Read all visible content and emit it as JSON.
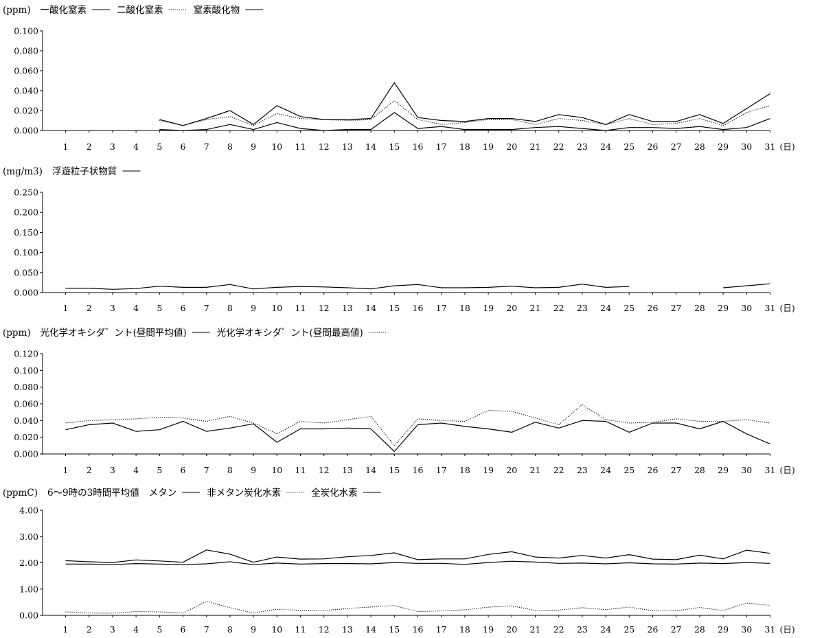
{
  "chart_data": [
    {
      "type": "line",
      "unit": "(ppm)",
      "x_unit": "(日)",
      "x": [
        1,
        2,
        3,
        4,
        5,
        6,
        7,
        8,
        9,
        10,
        11,
        12,
        13,
        14,
        15,
        16,
        17,
        18,
        19,
        20,
        21,
        22,
        23,
        24,
        25,
        26,
        27,
        28,
        29,
        30,
        31
      ],
      "ylim": [
        0,
        0.1
      ],
      "yticks": [
        "0.000",
        "0.020",
        "0.040",
        "0.060",
        "0.080",
        "0.100"
      ],
      "grid": false,
      "legend_position": "top",
      "series": [
        {
          "name": "一酸化窒素",
          "style": "solid",
          "values": [
            null,
            null,
            null,
            null,
            0.001,
            0.0,
            0.001,
            0.006,
            0.001,
            0.008,
            0.002,
            0.0,
            0.001,
            0.001,
            0.018,
            0.002,
            0.004,
            0.001,
            0.001,
            0.001,
            0.003,
            0.004,
            0.002,
            0.0,
            0.003,
            0.003,
            0.002,
            0.004,
            0.001,
            0.003,
            0.012
          ]
        },
        {
          "name": "二酸化窒素",
          "style": "dotted",
          "values": [
            null,
            null,
            null,
            null,
            0.01,
            0.005,
            0.011,
            0.014,
            0.005,
            0.017,
            0.012,
            0.011,
            0.01,
            0.011,
            0.03,
            0.011,
            0.006,
            0.008,
            0.011,
            0.011,
            0.006,
            0.012,
            0.01,
            0.006,
            0.012,
            0.006,
            0.007,
            0.012,
            0.005,
            0.018,
            0.025
          ]
        },
        {
          "name": "窒素酸化物",
          "style": "solid",
          "values": [
            null,
            null,
            null,
            null,
            0.011,
            0.005,
            0.012,
            0.02,
            0.006,
            0.025,
            0.014,
            0.011,
            0.011,
            0.012,
            0.048,
            0.013,
            0.01,
            0.009,
            0.012,
            0.012,
            0.009,
            0.016,
            0.013,
            0.006,
            0.016,
            0.009,
            0.009,
            0.016,
            0.007,
            0.022,
            0.037
          ]
        }
      ]
    },
    {
      "type": "line",
      "unit": "(mg/m3)",
      "x_unit": "(日)",
      "x": [
        1,
        2,
        3,
        4,
        5,
        6,
        7,
        8,
        9,
        10,
        11,
        12,
        13,
        14,
        15,
        16,
        17,
        18,
        19,
        20,
        21,
        22,
        23,
        24,
        25,
        26,
        27,
        28,
        29,
        30,
        31
      ],
      "ylim": [
        0,
        0.25
      ],
      "yticks": [
        "0.000",
        "0.050",
        "0.100",
        "0.150",
        "0.200",
        "0.250"
      ],
      "grid": false,
      "legend_position": "top",
      "series": [
        {
          "name": "浮遊粒子状物質",
          "style": "solid",
          "values": [
            0.011,
            0.011,
            0.008,
            0.01,
            0.016,
            0.013,
            0.013,
            0.02,
            0.009,
            0.013,
            0.015,
            0.014,
            0.012,
            0.009,
            0.017,
            0.02,
            0.012,
            0.012,
            0.013,
            0.016,
            0.012,
            0.013,
            0.021,
            0.013,
            0.015,
            null,
            null,
            null,
            0.012,
            0.017,
            0.022
          ]
        }
      ]
    },
    {
      "type": "line",
      "unit": "(ppm)",
      "x_unit": "(日)",
      "x": [
        1,
        2,
        3,
        4,
        5,
        6,
        7,
        8,
        9,
        10,
        11,
        12,
        13,
        14,
        15,
        16,
        17,
        18,
        19,
        20,
        21,
        22,
        23,
        24,
        25,
        26,
        27,
        28,
        29,
        30,
        31
      ],
      "ylim": [
        0,
        0.12
      ],
      "yticks": [
        "0.000",
        "0.020",
        "0.040",
        "0.060",
        "0.080",
        "0.100",
        "0.120"
      ],
      "grid": false,
      "legend_position": "top",
      "series": [
        {
          "name": "光化学オキシダ゛ント(昼間平均値)",
          "style": "solid",
          "values": [
            0.029,
            0.035,
            0.037,
            0.027,
            0.029,
            0.039,
            0.027,
            0.031,
            0.036,
            0.014,
            0.03,
            0.03,
            0.031,
            0.03,
            0.003,
            0.035,
            0.037,
            0.033,
            0.03,
            0.026,
            0.038,
            0.031,
            0.04,
            0.039,
            0.026,
            0.037,
            0.037,
            0.03,
            0.039,
            0.024,
            0.012
          ]
        },
        {
          "name": "光化学オキシダ゛ント(昼間最高値)",
          "style": "dotted",
          "values": [
            0.037,
            0.04,
            0.041,
            0.042,
            0.044,
            0.043,
            0.039,
            0.045,
            0.037,
            0.024,
            0.039,
            0.037,
            0.041,
            0.045,
            0.01,
            0.042,
            0.04,
            0.039,
            0.052,
            0.051,
            0.043,
            0.035,
            0.059,
            0.041,
            0.037,
            0.038,
            0.042,
            0.039,
            0.039,
            0.041,
            0.037
          ]
        }
      ]
    },
    {
      "type": "line",
      "unit": "(ppmC)",
      "title": "6～9時の3時間平均値",
      "x_unit": "(日)",
      "x": [
        1,
        2,
        3,
        4,
        5,
        6,
        7,
        8,
        9,
        10,
        11,
        12,
        13,
        14,
        15,
        16,
        17,
        18,
        19,
        20,
        21,
        22,
        23,
        24,
        25,
        26,
        27,
        28,
        29,
        30,
        31
      ],
      "ylim": [
        0,
        4
      ],
      "yticks": [
        "0.00",
        "1.00",
        "2.00",
        "3.00",
        "4.00"
      ],
      "grid": false,
      "legend_position": "top",
      "series": [
        {
          "name": "メタン",
          "style": "solid",
          "values": [
            1.95,
            1.95,
            1.93,
            1.97,
            1.95,
            1.93,
            1.96,
            2.04,
            1.93,
            1.99,
            1.95,
            1.97,
            1.97,
            1.96,
            2.01,
            1.98,
            1.98,
            1.94,
            2.01,
            2.06,
            2.03,
            1.98,
            1.99,
            1.96,
            2.0,
            1.96,
            1.95,
            1.99,
            1.97,
            2.01,
            1.98
          ]
        },
        {
          "name": "非メタン炭化水素",
          "style": "dotted",
          "values": [
            0.13,
            0.09,
            0.08,
            0.14,
            0.13,
            0.09,
            0.53,
            0.29,
            0.09,
            0.23,
            0.19,
            0.18,
            0.26,
            0.32,
            0.37,
            0.14,
            0.17,
            0.21,
            0.31,
            0.36,
            0.19,
            0.2,
            0.29,
            0.22,
            0.31,
            0.18,
            0.17,
            0.3,
            0.18,
            0.47,
            0.38
          ]
        },
        {
          "name": "全炭化水素",
          "style": "solid",
          "values": [
            2.08,
            2.04,
            2.01,
            2.11,
            2.07,
            2.02,
            2.49,
            2.33,
            2.02,
            2.22,
            2.14,
            2.15,
            2.23,
            2.28,
            2.38,
            2.12,
            2.15,
            2.15,
            2.32,
            2.42,
            2.22,
            2.18,
            2.28,
            2.18,
            2.31,
            2.14,
            2.12,
            2.29,
            2.15,
            2.48,
            2.36
          ]
        }
      ]
    }
  ]
}
